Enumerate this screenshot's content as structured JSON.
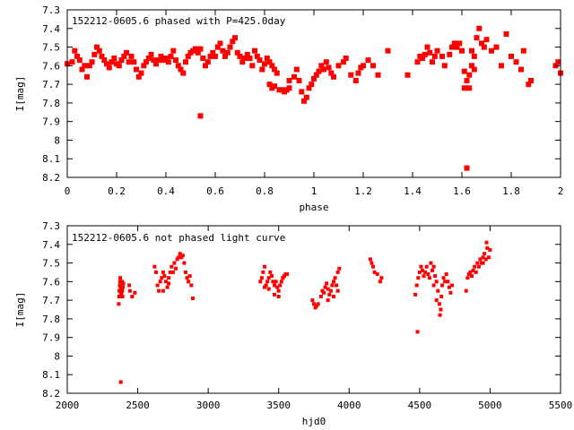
{
  "chart_data": [
    {
      "type": "scatter",
      "title": "152212-0605.6 phased with P=425.0day",
      "xlabel": "phase",
      "ylabel": "I[mag]",
      "xlim": [
        0,
        2
      ],
      "ylim": [
        7.3,
        8.2
      ],
      "y_inverted": true,
      "xticks": [
        "0",
        "0.2",
        "0.4",
        "0.6",
        "0.8",
        "1",
        "1.2",
        "1.4",
        "1.6",
        "1.8",
        "2"
      ],
      "xtick_values": [
        0,
        0.2,
        0.4,
        0.6,
        0.8,
        1.0,
        1.2,
        1.4,
        1.6,
        1.8,
        2.0
      ],
      "yticks": [
        "7.3",
        "7.4",
        "7.5",
        "7.6",
        "7.7",
        "7.8",
        "7.9",
        "8",
        "8.1",
        "8.2"
      ],
      "ytick_values": [
        7.3,
        7.4,
        7.5,
        7.6,
        7.7,
        7.8,
        7.9,
        8.0,
        8.1,
        8.2
      ],
      "marker_color": "#ff0000",
      "points": [
        [
          0.0,
          7.59
        ],
        [
          0.02,
          7.58
        ],
        [
          0.03,
          7.52
        ],
        [
          0.04,
          7.55
        ],
        [
          0.05,
          7.57
        ],
        [
          0.06,
          7.62
        ],
        [
          0.07,
          7.6
        ],
        [
          0.08,
          7.66
        ],
        [
          0.09,
          7.6
        ],
        [
          0.1,
          7.58
        ],
        [
          0.11,
          7.54
        ],
        [
          0.12,
          7.5
        ],
        [
          0.13,
          7.52
        ],
        [
          0.14,
          7.55
        ],
        [
          0.15,
          7.57
        ],
        [
          0.16,
          7.59
        ],
        [
          0.17,
          7.61
        ],
        [
          0.18,
          7.58
        ],
        [
          0.19,
          7.56
        ],
        [
          0.2,
          7.59
        ],
        [
          0.21,
          7.6
        ],
        [
          0.22,
          7.57
        ],
        [
          0.23,
          7.55
        ],
        [
          0.24,
          7.53
        ],
        [
          0.25,
          7.58
        ],
        [
          0.26,
          7.55
        ],
        [
          0.27,
          7.58
        ],
        [
          0.28,
          7.62
        ],
        [
          0.29,
          7.66
        ],
        [
          0.3,
          7.64
        ],
        [
          0.31,
          7.6
        ],
        [
          0.32,
          7.58
        ],
        [
          0.33,
          7.56
        ],
        [
          0.34,
          7.54
        ],
        [
          0.35,
          7.57
        ],
        [
          0.36,
          7.59
        ],
        [
          0.37,
          7.57
        ],
        [
          0.38,
          7.55
        ],
        [
          0.39,
          7.57
        ],
        [
          0.4,
          7.56
        ],
        [
          0.41,
          7.58
        ],
        [
          0.42,
          7.55
        ],
        [
          0.43,
          7.52
        ],
        [
          0.44,
          7.57
        ],
        [
          0.45,
          7.6
        ],
        [
          0.46,
          7.62
        ],
        [
          0.47,
          7.64
        ],
        [
          0.48,
          7.58
        ],
        [
          0.49,
          7.55
        ],
        [
          0.5,
          7.53
        ],
        [
          0.51,
          7.52
        ],
        [
          0.52,
          7.51
        ],
        [
          0.53,
          7.53
        ],
        [
          0.54,
          7.51
        ],
        [
          0.54,
          7.87
        ],
        [
          0.55,
          7.56
        ],
        [
          0.56,
          7.6
        ],
        [
          0.57,
          7.58
        ],
        [
          0.58,
          7.55
        ],
        [
          0.59,
          7.53
        ],
        [
          0.6,
          7.55
        ],
        [
          0.61,
          7.5
        ],
        [
          0.62,
          7.48
        ],
        [
          0.63,
          7.52
        ],
        [
          0.64,
          7.55
        ],
        [
          0.65,
          7.53
        ],
        [
          0.66,
          7.5
        ],
        [
          0.67,
          7.47
        ],
        [
          0.68,
          7.45
        ],
        [
          0.69,
          7.53
        ],
        [
          0.7,
          7.55
        ],
        [
          0.71,
          7.58
        ],
        [
          0.72,
          7.56
        ],
        [
          0.73,
          7.54
        ],
        [
          0.74,
          7.56
        ],
        [
          0.75,
          7.6
        ],
        [
          0.76,
          7.52
        ],
        [
          0.77,
          7.55
        ],
        [
          0.78,
          7.57
        ],
        [
          0.79,
          7.62
        ],
        [
          0.8,
          7.59
        ],
        [
          0.81,
          7.56
        ],
        [
          0.82,
          7.58
        ],
        [
          0.83,
          7.6
        ],
        [
          0.84,
          7.62
        ],
        [
          0.85,
          7.64
        ],
        [
          0.82,
          7.7
        ],
        [
          0.83,
          7.72
        ],
        [
          0.84,
          7.71
        ],
        [
          0.86,
          7.73
        ],
        [
          0.87,
          7.73
        ],
        [
          0.88,
          7.74
        ],
        [
          0.89,
          7.73
        ],
        [
          0.9,
          7.72
        ],
        [
          0.9,
          7.68
        ],
        [
          0.92,
          7.66
        ],
        [
          0.93,
          7.62
        ],
        [
          0.94,
          7.68
        ],
        [
          0.95,
          7.74
        ],
        [
          0.96,
          7.79
        ],
        [
          0.97,
          7.77
        ],
        [
          0.98,
          7.72
        ],
        [
          0.99,
          7.7
        ],
        [
          1.0,
          7.67
        ],
        [
          1.01,
          7.65
        ],
        [
          1.02,
          7.63
        ],
        [
          1.03,
          7.6
        ],
        [
          1.04,
          7.62
        ],
        [
          1.05,
          7.58
        ],
        [
          1.06,
          7.61
        ],
        [
          1.07,
          7.64
        ],
        [
          1.08,
          7.66
        ],
        [
          1.1,
          7.6
        ],
        [
          1.12,
          7.58
        ],
        [
          1.13,
          7.56
        ],
        [
          1.15,
          7.65
        ],
        [
          1.17,
          7.68
        ],
        [
          1.18,
          7.64
        ],
        [
          1.19,
          7.61
        ],
        [
          1.2,
          7.6
        ],
        [
          1.22,
          7.57
        ],
        [
          1.24,
          7.6
        ],
        [
          1.26,
          7.65
        ],
        [
          1.3,
          7.52
        ],
        [
          1.38,
          7.65
        ],
        [
          1.42,
          7.58
        ],
        [
          1.43,
          7.55
        ],
        [
          1.44,
          7.56
        ],
        [
          1.45,
          7.54
        ],
        [
          1.46,
          7.5
        ],
        [
          1.47,
          7.53
        ],
        [
          1.48,
          7.58
        ],
        [
          1.49,
          7.55
        ],
        [
          1.5,
          7.52
        ],
        [
          1.52,
          7.55
        ],
        [
          1.53,
          7.6
        ],
        [
          1.55,
          7.54
        ],
        [
          1.56,
          7.5
        ],
        [
          1.57,
          7.48
        ],
        [
          1.58,
          7.5
        ],
        [
          1.59,
          7.48
        ],
        [
          1.6,
          7.52
        ],
        [
          1.61,
          7.63
        ],
        [
          1.62,
          7.68
        ],
        [
          1.62,
          8.15
        ],
        [
          1.63,
          7.72
        ],
        [
          1.63,
          7.65
        ],
        [
          1.64,
          7.6
        ],
        [
          1.64,
          7.52
        ],
        [
          1.65,
          7.55
        ],
        [
          1.66,
          7.45
        ],
        [
          1.67,
          7.4
        ],
        [
          1.68,
          7.48
        ],
        [
          1.69,
          7.5
        ],
        [
          1.7,
          7.46
        ],
        [
          1.72,
          7.52
        ],
        [
          1.74,
          7.5
        ],
        [
          1.76,
          7.6
        ],
        [
          1.78,
          7.43
        ],
        [
          1.8,
          7.55
        ],
        [
          1.82,
          7.58
        ],
        [
          1.84,
          7.62
        ],
        [
          1.85,
          7.52
        ],
        [
          1.87,
          7.7
        ],
        [
          1.88,
          7.68
        ],
        [
          1.98,
          7.6
        ],
        [
          1.99,
          7.58
        ],
        [
          2.0,
          7.64
        ],
        [
          1.61,
          7.72
        ],
        [
          1.65,
          7.62
        ]
      ]
    },
    {
      "type": "scatter",
      "title": "152212-0605.6 not phased light curve",
      "xlabel": "hjd0",
      "ylabel": "I[mag]",
      "xlim": [
        2000,
        5500
      ],
      "ylim": [
        7.3,
        8.2
      ],
      "y_inverted": true,
      "xticks": [
        "2000",
        "2500",
        "3000",
        "3500",
        "4000",
        "4500",
        "5000",
        "5500"
      ],
      "xtick_values": [
        2000,
        2500,
        3000,
        3500,
        4000,
        4500,
        5000,
        5500
      ],
      "yticks": [
        "7.3",
        "7.4",
        "7.5",
        "7.6",
        "7.7",
        "7.8",
        "7.9",
        "8",
        "8.1",
        "8.2"
      ],
      "ytick_values": [
        7.3,
        7.4,
        7.5,
        7.6,
        7.7,
        7.8,
        7.9,
        8.0,
        8.1,
        8.2
      ],
      "marker_color": "#ff0000",
      "points": [
        [
          2365,
          7.72
        ],
        [
          2368,
          7.68
        ],
        [
          2370,
          7.65
        ],
        [
          2372,
          7.62
        ],
        [
          2374,
          7.6
        ],
        [
          2376,
          7.58
        ],
        [
          2378,
          7.63
        ],
        [
          2380,
          7.67
        ],
        [
          2382,
          7.64
        ],
        [
          2385,
          7.66
        ],
        [
          2388,
          7.6
        ],
        [
          2390,
          7.65
        ],
        [
          2392,
          7.68
        ],
        [
          2395,
          7.63
        ],
        [
          2398,
          7.61
        ],
        [
          2380,
          8.14
        ],
        [
          2440,
          7.62
        ],
        [
          2445,
          7.65
        ],
        [
          2460,
          7.68
        ],
        [
          2480,
          7.66
        ],
        [
          2620,
          7.52
        ],
        [
          2630,
          7.55
        ],
        [
          2640,
          7.62
        ],
        [
          2650,
          7.65
        ],
        [
          2660,
          7.6
        ],
        [
          2670,
          7.58
        ],
        [
          2680,
          7.55
        ],
        [
          2690,
          7.57
        ],
        [
          2700,
          7.6
        ],
        [
          2710,
          7.63
        ],
        [
          2720,
          7.58
        ],
        [
          2730,
          7.55
        ],
        [
          2740,
          7.52
        ],
        [
          2750,
          7.55
        ],
        [
          2760,
          7.5
        ],
        [
          2770,
          7.53
        ],
        [
          2780,
          7.48
        ],
        [
          2790,
          7.47
        ],
        [
          2800,
          7.45
        ],
        [
          2810,
          7.47
        ],
        [
          2820,
          7.46
        ],
        [
          2830,
          7.5
        ],
        [
          2840,
          7.55
        ],
        [
          2850,
          7.58
        ],
        [
          2860,
          7.6
        ],
        [
          2870,
          7.57
        ],
        [
          2880,
          7.62
        ],
        [
          2890,
          7.69
        ],
        [
          2680,
          7.65
        ],
        [
          2720,
          7.61
        ],
        [
          3370,
          7.6
        ],
        [
          3380,
          7.58
        ],
        [
          3390,
          7.55
        ],
        [
          3400,
          7.52
        ],
        [
          3410,
          7.62
        ],
        [
          3420,
          7.6
        ],
        [
          3430,
          7.58
        ],
        [
          3440,
          7.55
        ],
        [
          3450,
          7.57
        ],
        [
          3460,
          7.6
        ],
        [
          3470,
          7.62
        ],
        [
          3480,
          7.6
        ],
        [
          3490,
          7.63
        ],
        [
          3500,
          7.65
        ],
        [
          3510,
          7.62
        ],
        [
          3520,
          7.6
        ],
        [
          3530,
          7.58
        ],
        [
          3540,
          7.57
        ],
        [
          3550,
          7.56
        ],
        [
          3560,
          7.56
        ],
        [
          3400,
          7.63
        ],
        [
          3430,
          7.64
        ],
        [
          3470,
          7.67
        ],
        [
          3500,
          7.68
        ],
        [
          3530,
          7.58
        ],
        [
          3740,
          7.7
        ],
        [
          3750,
          7.72
        ],
        [
          3760,
          7.74
        ],
        [
          3770,
          7.73
        ],
        [
          3780,
          7.72
        ],
        [
          3800,
          7.68
        ],
        [
          3810,
          7.65
        ],
        [
          3820,
          7.66
        ],
        [
          3830,
          7.63
        ],
        [
          3840,
          7.61
        ],
        [
          3850,
          7.64
        ],
        [
          3860,
          7.67
        ],
        [
          3870,
          7.65
        ],
        [
          3880,
          7.62
        ],
        [
          3890,
          7.6
        ],
        [
          3900,
          7.58
        ],
        [
          3910,
          7.62
        ],
        [
          3920,
          7.55
        ],
        [
          3930,
          7.53
        ],
        [
          3890,
          7.68
        ],
        [
          3850,
          7.7
        ],
        [
          3920,
          7.65
        ],
        [
          4150,
          7.48
        ],
        [
          4160,
          7.5
        ],
        [
          4170,
          7.52
        ],
        [
          4180,
          7.55
        ],
        [
          4200,
          7.56
        ],
        [
          4220,
          7.6
        ],
        [
          4230,
          7.58
        ],
        [
          4470,
          7.67
        ],
        [
          4480,
          7.62
        ],
        [
          4485,
          7.87
        ],
        [
          4490,
          7.58
        ],
        [
          4500,
          7.55
        ],
        [
          4510,
          7.52
        ],
        [
          4520,
          7.54
        ],
        [
          4530,
          7.57
        ],
        [
          4540,
          7.55
        ],
        [
          4550,
          7.52
        ],
        [
          4560,
          7.56
        ],
        [
          4570,
          7.58
        ],
        [
          4580,
          7.5
        ],
        [
          4590,
          7.54
        ],
        [
          4600,
          7.52
        ],
        [
          4610,
          7.57
        ],
        [
          4620,
          7.6
        ],
        [
          4630,
          7.65
        ],
        [
          4640,
          7.72
        ],
        [
          4645,
          7.78
        ],
        [
          4650,
          7.75
        ],
        [
          4655,
          7.68
        ],
        [
          4660,
          7.62
        ],
        [
          4670,
          7.58
        ],
        [
          4680,
          7.6
        ],
        [
          4690,
          7.56
        ],
        [
          4700,
          7.6
        ],
        [
          4710,
          7.63
        ],
        [
          4720,
          7.66
        ],
        [
          4730,
          7.62
        ],
        [
          4600,
          7.62
        ],
        [
          4620,
          7.7
        ],
        [
          4830,
          7.65
        ],
        [
          4840,
          7.58
        ],
        [
          4850,
          7.56
        ],
        [
          4860,
          7.55
        ],
        [
          4870,
          7.57
        ],
        [
          4880,
          7.54
        ],
        [
          4890,
          7.52
        ],
        [
          4900,
          7.55
        ],
        [
          4910,
          7.5
        ],
        [
          4920,
          7.52
        ],
        [
          4930,
          7.48
        ],
        [
          4940,
          7.5
        ],
        [
          4950,
          7.47
        ],
        [
          4960,
          7.45
        ],
        [
          4970,
          7.48
        ],
        [
          4980,
          7.42
        ],
        [
          4990,
          7.47
        ],
        [
          5000,
          7.43
        ],
        [
          4975,
          7.39
        ],
        [
          4950,
          7.5
        ]
      ]
    }
  ]
}
